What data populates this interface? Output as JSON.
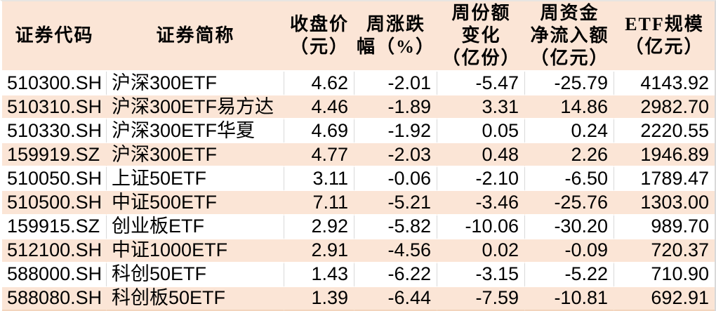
{
  "colors": {
    "header_bg": "#fbe5d6",
    "row_alt_bg": "#fbe5d6",
    "row_bg": "#ffffff",
    "grid_line": "#d9d9d9",
    "separator": "#ffffff",
    "text": "#000000"
  },
  "chart_data": {
    "type": "table",
    "columns": [
      {
        "key": "code",
        "label": "证券代码"
      },
      {
        "key": "name",
        "label": "证券简称"
      },
      {
        "key": "close",
        "label": "收盘价\n（元）"
      },
      {
        "key": "change_pct",
        "label": "周涨跌\n幅（%）"
      },
      {
        "key": "share_change",
        "label": "周份额\n变化\n（亿份）"
      },
      {
        "key": "net_inflow",
        "label": "周资金\n净流入额\n（亿元）"
      },
      {
        "key": "etf_scale",
        "label": "ETF规模\n（亿元）"
      }
    ],
    "rows": [
      {
        "code": "510300.SH",
        "name": "沪深300ETF",
        "close": "4.62",
        "change_pct": "-2.01",
        "share_change": "-5.47",
        "net_inflow": "-25.79",
        "etf_scale": "4143.92"
      },
      {
        "code": "510310.SH",
        "name": "沪深300ETF易方达",
        "close": "4.46",
        "change_pct": "-1.89",
        "share_change": "3.31",
        "net_inflow": "14.86",
        "etf_scale": "2982.70"
      },
      {
        "code": "510330.SH",
        "name": "沪深300ETF华夏",
        "close": "4.69",
        "change_pct": "-1.92",
        "share_change": "0.05",
        "net_inflow": "0.24",
        "etf_scale": "2220.55"
      },
      {
        "code": "159919.SZ",
        "name": "沪深300ETF",
        "close": "4.77",
        "change_pct": "-2.03",
        "share_change": "0.48",
        "net_inflow": "2.26",
        "etf_scale": "1946.89"
      },
      {
        "code": "510050.SH",
        "name": "上证50ETF",
        "close": "3.11",
        "change_pct": "-0.06",
        "share_change": "-2.10",
        "net_inflow": "-6.50",
        "etf_scale": "1789.47"
      },
      {
        "code": "510500.SH",
        "name": "中证500ETF",
        "close": "7.11",
        "change_pct": "-5.21",
        "share_change": "-3.46",
        "net_inflow": "-25.76",
        "etf_scale": "1303.00"
      },
      {
        "code": "159915.SZ",
        "name": "创业板ETF",
        "close": "2.92",
        "change_pct": "-5.82",
        "share_change": "-10.06",
        "net_inflow": "-30.20",
        "etf_scale": "989.70"
      },
      {
        "code": "512100.SH",
        "name": "中证1000ETF",
        "close": "2.91",
        "change_pct": "-4.56",
        "share_change": "0.02",
        "net_inflow": "-0.09",
        "etf_scale": "720.37"
      },
      {
        "code": "588000.SH",
        "name": "科创50ETF",
        "close": "1.43",
        "change_pct": "-6.22",
        "share_change": "-3.15",
        "net_inflow": "-5.22",
        "etf_scale": "710.90"
      },
      {
        "code": "588080.SH",
        "name": "科创板50ETF",
        "close": "1.39",
        "change_pct": "-6.44",
        "share_change": "-7.59",
        "net_inflow": "-10.81",
        "etf_scale": "692.91"
      }
    ]
  }
}
